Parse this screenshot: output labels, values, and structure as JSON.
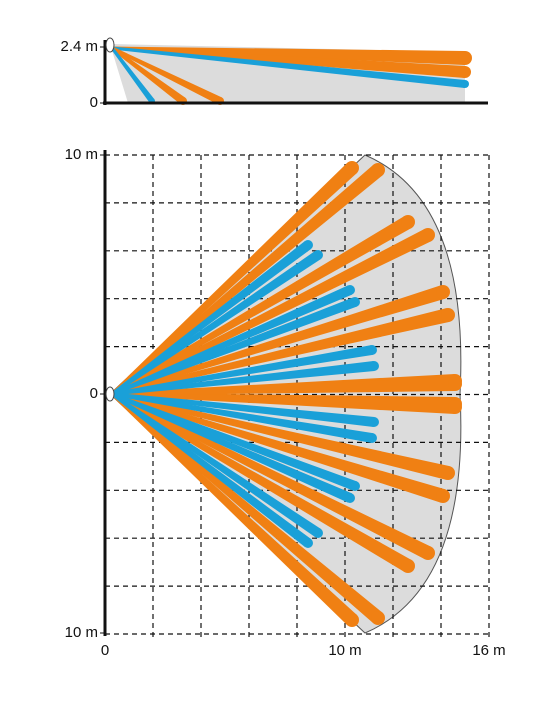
{
  "side_view": {
    "y_labels": [
      "2.4 m",
      "0"
    ]
  },
  "top_view": {
    "y_labels": [
      "10 m",
      "0",
      "10 m"
    ],
    "x_labels": [
      "0",
      "10 m",
      "16 m"
    ]
  }
}
